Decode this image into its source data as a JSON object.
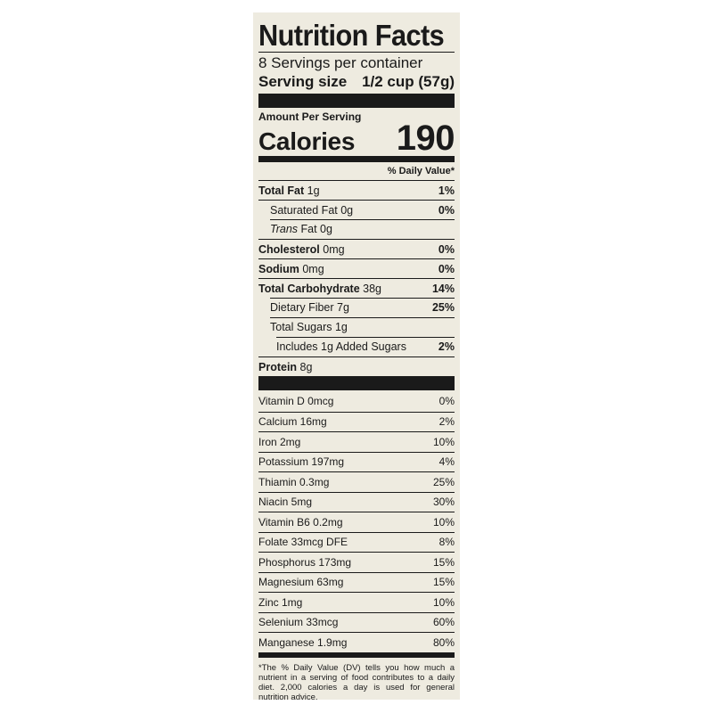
{
  "label": {
    "title": "Nutrition Facts",
    "servings_per_container": "8 Servings per container",
    "serving_size_label": "Serving size",
    "serving_size_value": "1/2 cup (57g)",
    "amount_per_serving": "Amount Per Serving",
    "calories_label": "Calories",
    "calories_value": "190",
    "daily_value_header": "% Daily Value*",
    "nutrients": [
      {
        "name": "Total Fat",
        "amount": "1g",
        "dv": "1%"
      },
      {
        "name": "Saturated Fat",
        "amount": "0g",
        "dv": "0%"
      },
      {
        "name": "Trans",
        "amount": "Fat 0g",
        "dv": ""
      },
      {
        "name": "Cholesterol",
        "amount": "0mg",
        "dv": "0%"
      },
      {
        "name": "Sodium",
        "amount": "0mg",
        "dv": "0%"
      },
      {
        "name": "Total Carbohydrate",
        "amount": "38g",
        "dv": "14%"
      },
      {
        "name": "Dietary Fiber",
        "amount": "7g",
        "dv": "25%"
      },
      {
        "name": "Total Sugars",
        "amount": "1g",
        "dv": ""
      },
      {
        "name": "Includes 1g Added Sugars",
        "amount": "",
        "dv": "2%"
      },
      {
        "name": "Protein",
        "amount": "8g",
        "dv": ""
      }
    ],
    "vitamins": [
      {
        "text": "Vitamin D 0mcg",
        "dv": "0%"
      },
      {
        "text": "Calcium 16mg",
        "dv": "2%"
      },
      {
        "text": "Iron 2mg",
        "dv": "10%"
      },
      {
        "text": "Potassium 197mg",
        "dv": "4%"
      },
      {
        "text": "Thiamin 0.3mg",
        "dv": "25%"
      },
      {
        "text": "Niacin 5mg",
        "dv": "30%"
      },
      {
        "text": "Vitamin B6 0.2mg",
        "dv": "10%"
      },
      {
        "text": "Folate 33mcg DFE",
        "dv": "8%"
      },
      {
        "text": "Phosphorus 173mg",
        "dv": "15%"
      },
      {
        "text": "Magnesium 63mg",
        "dv": "15%"
      },
      {
        "text": "Zinc 1mg",
        "dv": "10%"
      },
      {
        "text": "Selenium 33mcg",
        "dv": "60%"
      },
      {
        "text": "Manganese 1.9mg",
        "dv": "80%"
      }
    ],
    "footnote": "*The % Daily Value (DV) tells you how much a nutrient in a serving of food contributes to a daily diet. 2,000 calories a day is used for general nutrition advice."
  },
  "colors": {
    "label_background": "#eeebe0",
    "ink": "#1a1a1a",
    "page_background": "#ffffff"
  }
}
